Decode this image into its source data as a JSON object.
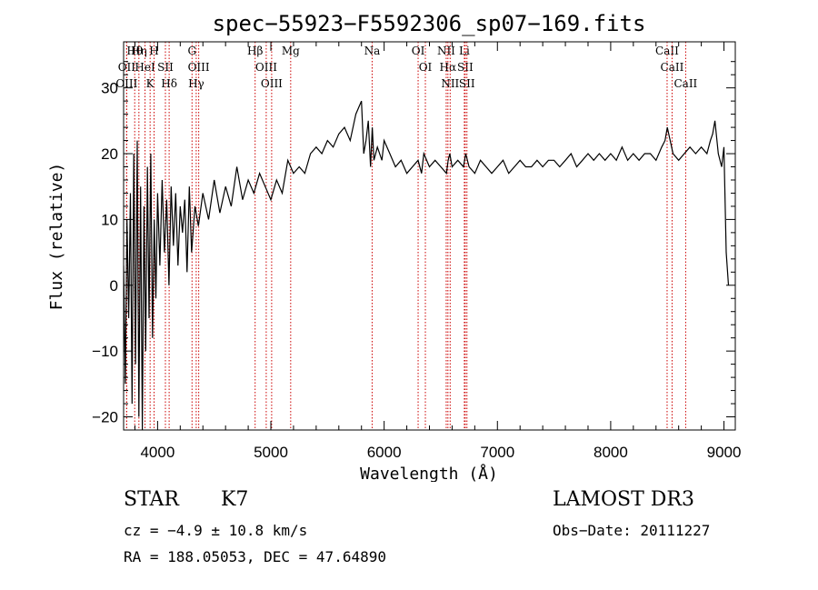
{
  "chart_data": {
    "type": "line",
    "title": "spec−55923−F5592306_sp07−169.fits",
    "xlabel": "Wavelength (Å)",
    "ylabel": "Flux (relative)",
    "xlim": [
      3700,
      9100
    ],
    "ylim": [
      -22,
      37
    ],
    "xticks": [
      4000,
      5000,
      6000,
      7000,
      8000,
      9000
    ],
    "yticks": [
      -20,
      -10,
      0,
      10,
      20,
      30
    ],
    "xtick_labels": [
      "4000",
      "5000",
      "6000",
      "7000",
      "8000",
      "9000"
    ],
    "ytick_labels": [
      "−20",
      "−10",
      "0",
      "10",
      "20",
      "30"
    ],
    "grid": false,
    "series": [
      {
        "name": "spectrum",
        "x": [
          3700,
          3715,
          3730,
          3745,
          3760,
          3775,
          3790,
          3805,
          3820,
          3835,
          3850,
          3865,
          3880,
          3895,
          3910,
          3925,
          3940,
          3955,
          3970,
          3985,
          4000,
          4020,
          4040,
          4060,
          4080,
          4100,
          4120,
          4140,
          4160,
          4180,
          4200,
          4220,
          4240,
          4260,
          4280,
          4300,
          4330,
          4360,
          4400,
          4450,
          4500,
          4550,
          4600,
          4650,
          4700,
          4750,
          4800,
          4850,
          4900,
          4950,
          5000,
          5050,
          5100,
          5150,
          5200,
          5250,
          5300,
          5350,
          5400,
          5450,
          5500,
          5550,
          5600,
          5650,
          5700,
          5750,
          5800,
          5820,
          5840,
          5860,
          5880,
          5895,
          5910,
          5940,
          5980,
          6000,
          6050,
          6100,
          6150,
          6200,
          6250,
          6300,
          6330,
          6350,
          6400,
          6450,
          6500,
          6550,
          6565,
          6580,
          6600,
          6650,
          6700,
          6720,
          6750,
          6800,
          6850,
          6900,
          6950,
          7000,
          7050,
          7100,
          7150,
          7200,
          7250,
          7300,
          7350,
          7400,
          7450,
          7500,
          7550,
          7600,
          7650,
          7700,
          7750,
          7800,
          7850,
          7900,
          7950,
          8000,
          8050,
          8100,
          8150,
          8200,
          8250,
          8300,
          8350,
          8400,
          8450,
          8480,
          8500,
          8550,
          8600,
          8650,
          8700,
          8750,
          8800,
          8850,
          8880,
          8900,
          8920,
          8950,
          8980,
          9000,
          9020,
          9040
        ],
        "y": [
          3,
          -15,
          10,
          -5,
          14,
          -18,
          20,
          -12,
          22,
          -20,
          15,
          -22,
          12,
          -10,
          18,
          -5,
          20,
          -8,
          10,
          -2,
          14,
          3,
          16,
          5,
          13,
          0,
          15,
          6,
          14,
          3,
          12,
          8,
          13,
          2,
          15,
          5,
          12,
          9,
          14,
          10,
          16,
          11,
          15,
          12,
          18,
          13,
          16,
          14,
          17,
          15,
          13,
          16,
          14,
          19,
          17,
          18,
          17,
          20,
          21,
          20,
          22,
          21,
          23,
          24,
          22,
          26,
          28,
          20,
          22,
          25,
          18,
          24,
          19,
          21,
          19,
          22,
          20,
          18,
          19,
          17,
          18,
          19,
          17,
          20,
          18,
          19,
          18,
          17,
          19,
          20,
          18,
          19,
          18,
          20,
          18,
          17,
          19,
          18,
          17,
          18,
          19,
          17,
          18,
          19,
          18,
          18,
          19,
          18,
          19,
          19,
          18,
          19,
          20,
          18,
          19,
          20,
          19,
          20,
          19,
          20,
          19,
          21,
          19,
          20,
          19,
          20,
          20,
          19,
          21,
          22,
          24,
          20,
          19,
          20,
          21,
          20,
          21,
          20,
          22,
          23,
          25,
          20,
          18,
          21,
          5,
          0
        ]
      }
    ],
    "line_markers": [
      {
        "label": "Hθ",
        "wavelength": 3798
      },
      {
        "label": "OII",
        "wavelength": 3727
      },
      {
        "label": "OIII",
        "wavelength": 3727
      },
      {
        "label": "Hη",
        "wavelength": 3835
      },
      {
        "label": "HeI",
        "wavelength": 3889
      },
      {
        "label": "K",
        "wavelength": 3934
      },
      {
        "label": "H",
        "wavelength": 3969
      },
      {
        "label": "SII",
        "wavelength": 4069
      },
      {
        "label": "Hδ",
        "wavelength": 4102
      },
      {
        "label": "G",
        "wavelength": 4304
      },
      {
        "label": "OIII",
        "wavelength": 4363
      },
      {
        "label": "Hγ",
        "wavelength": 4341
      },
      {
        "label": "Hβ",
        "wavelength": 4861
      },
      {
        "label": "OIII",
        "wavelength": 4959
      },
      {
        "label": "OIII",
        "wavelength": 5007
      },
      {
        "label": "Mg",
        "wavelength": 5175
      },
      {
        "label": "Na",
        "wavelength": 5894
      },
      {
        "label": "OI",
        "wavelength": 6300
      },
      {
        "label": "OI",
        "wavelength": 6364
      },
      {
        "label": "NII",
        "wavelength": 6548
      },
      {
        "label": "Hα",
        "wavelength": 6563
      },
      {
        "label": "NII",
        "wavelength": 6583
      },
      {
        "label": "Li",
        "wavelength": 6708
      },
      {
        "label": "SII",
        "wavelength": 6716
      },
      {
        "label": "SII",
        "wavelength": 6731
      },
      {
        "label": "CaII",
        "wavelength": 8498
      },
      {
        "label": "CaII",
        "wavelength": 8542
      },
      {
        "label": "CaII",
        "wavelength": 8662
      }
    ]
  },
  "info": {
    "object_class": "STAR",
    "subclass": "K7",
    "redshift": "cz = −4.9 ± 10.8 km/s",
    "coords": "RA = 188.05053, DEC =  47.64890",
    "survey": "LAMOST DR3",
    "obs_date": "Obs−Date: 20111227"
  },
  "colors": {
    "spectrum": "#000000",
    "marker_line": "#cc0000",
    "axes": "#000000"
  }
}
